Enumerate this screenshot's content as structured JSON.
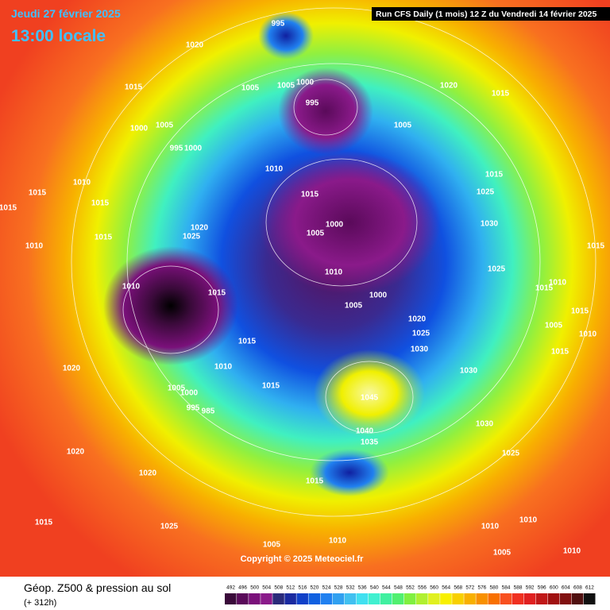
{
  "header": {
    "date": "Jeudi 27 février 2025",
    "time": "13:00 locale",
    "run": "Run CFS Daily (1 mois) 12 Z du Vendredi 14 février 2025"
  },
  "copyright": "Copyright © 2025 Meteociel.fr",
  "footer": {
    "title": "Géop. Z500 & pression au sol",
    "lead": "(+ 312h)"
  },
  "legend": {
    "values": [
      492,
      496,
      500,
      504,
      508,
      512,
      516,
      520,
      524,
      528,
      532,
      536,
      540,
      544,
      548,
      552,
      556,
      560,
      564,
      568,
      572,
      576,
      580,
      584,
      588,
      592,
      596,
      600,
      604,
      608,
      612
    ],
    "colors": [
      "#3a0a3a",
      "#5a0a5a",
      "#7a107a",
      "#8a1a8a",
      "#2a2a7a",
      "#1a2aa0",
      "#1040c8",
      "#1060e0",
      "#2080f0",
      "#30a0f0",
      "#40c0f0",
      "#40e0f0",
      "#40f0d0",
      "#40f0a0",
      "#50f070",
      "#80f040",
      "#b0f030",
      "#e0f020",
      "#f8f000",
      "#f8d000",
      "#f8b000",
      "#f89000",
      "#f87000",
      "#f85020",
      "#f03020",
      "#e02020",
      "#c01818",
      "#a01010",
      "#801010",
      "#501010",
      "#101010"
    ]
  },
  "isobars": [
    "995",
    "1020",
    "1015",
    "1005",
    "1005",
    "1000",
    "995",
    "1020",
    "1015",
    "1005",
    "1000",
    "1005",
    "995",
    "1000",
    "1010",
    "1015",
    "1010",
    "1015",
    "1015",
    "1025",
    "1015",
    "1015",
    "1000",
    "1030",
    "1020",
    "1005",
    "1025",
    "1015",
    "1010",
    "1015",
    "1010",
    "1025",
    "1010",
    "1015",
    "1010",
    "1015",
    "1000",
    "1005",
    "1015",
    "1020",
    "1005",
    "1010",
    "1025",
    "1015",
    "1030",
    "1015",
    "1010",
    "1020",
    "1030",
    "1015",
    "1005",
    "1000",
    "1045",
    "995",
    "985",
    "1030",
    "1040",
    "1035",
    "1020",
    "1025",
    "1020",
    "1015",
    "1015",
    "1025",
    "1010",
    "1010",
    "1005",
    "1010",
    "1005",
    "1010"
  ]
}
